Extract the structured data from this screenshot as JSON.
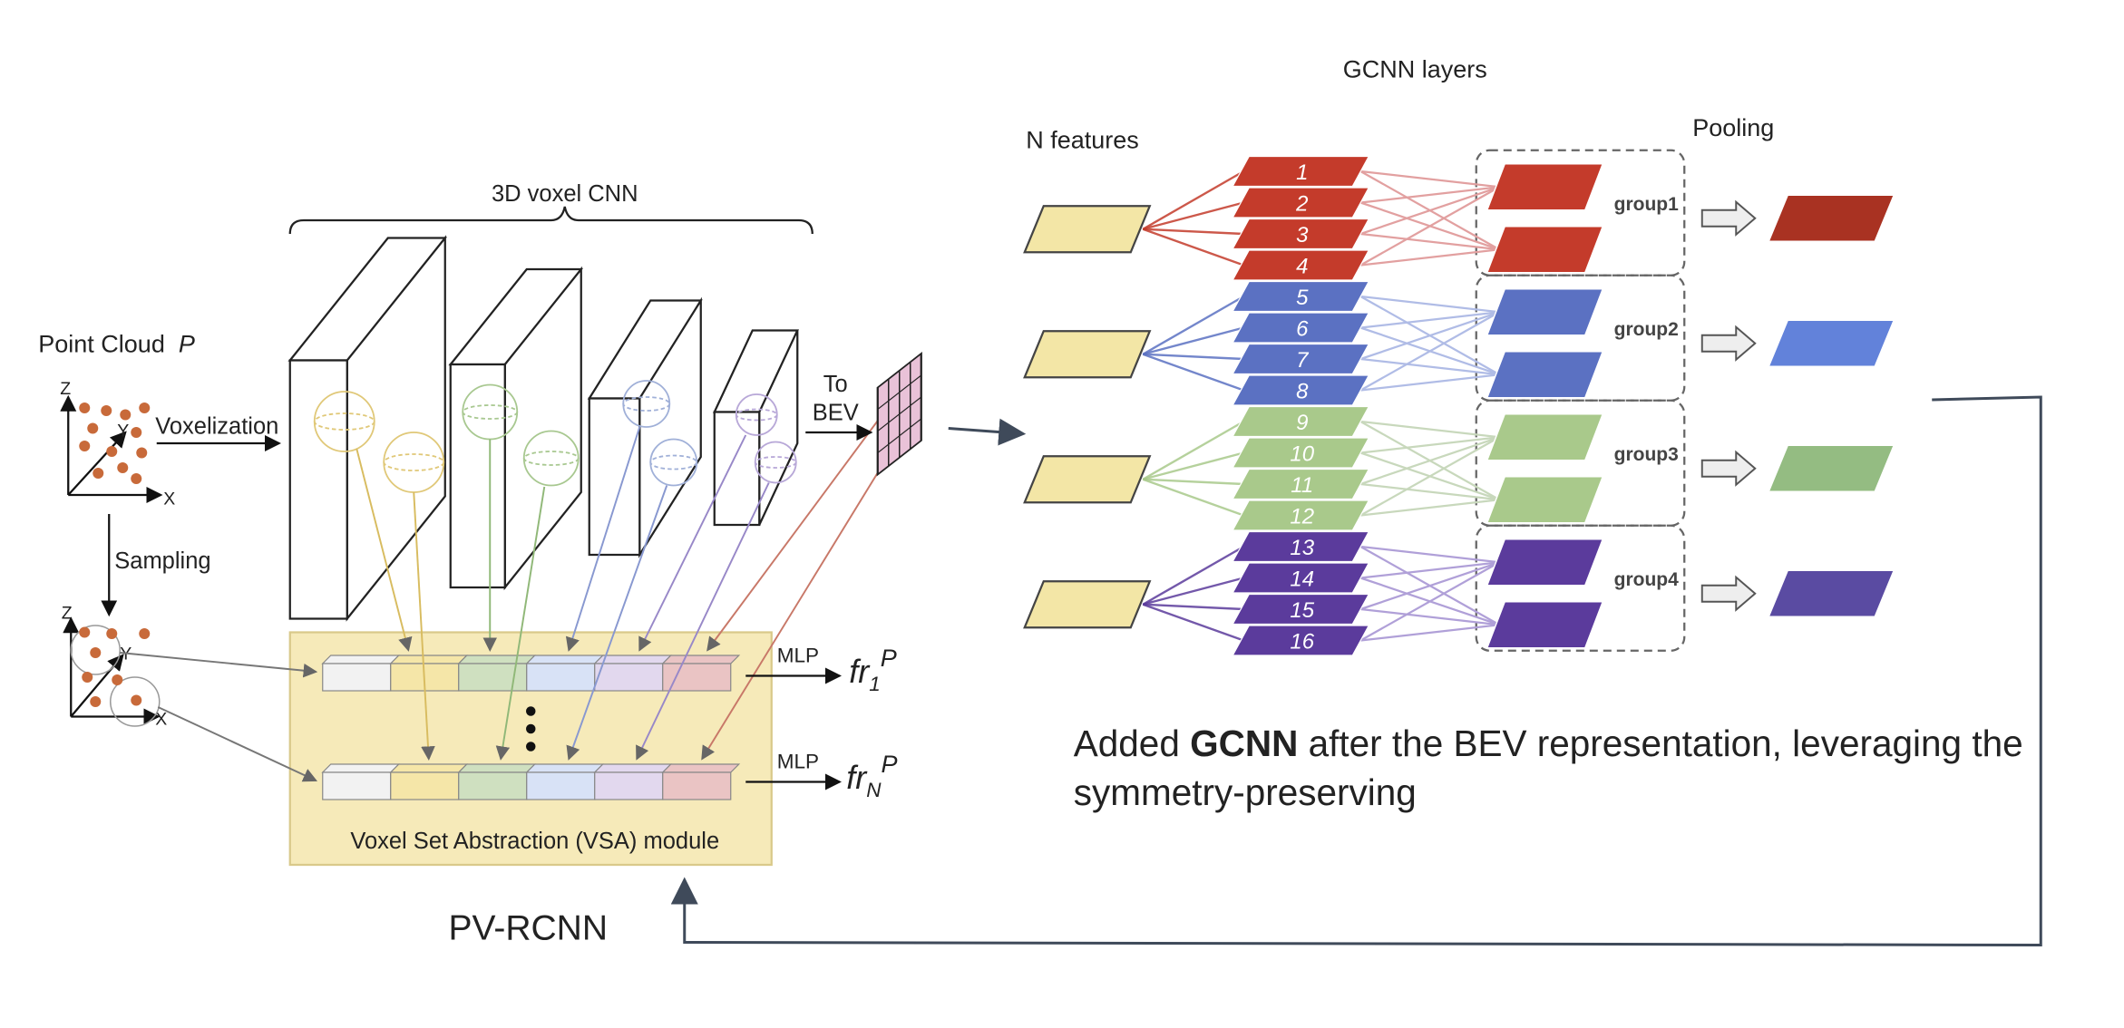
{
  "pv_rcnn": {
    "title": "PV-RCNN",
    "cnn_label": "3D voxel CNN",
    "point_cloud": {
      "label": "Point Cloud",
      "symbol": "P"
    },
    "axes_top": [
      "Z",
      "Y",
      "X"
    ],
    "axes_bottom": [
      "Z",
      "Y",
      "X"
    ],
    "voxelization": "Voxelization",
    "sampling": "Sampling",
    "to_bev": [
      "To",
      "BEV"
    ],
    "mlp": [
      "MLP",
      "MLP"
    ],
    "outputs": [
      {
        "base": "fr",
        "sub": "1",
        "sup": "P"
      },
      {
        "base": "fr",
        "sub": "N",
        "sup": "P"
      }
    ],
    "vsa": "Voxel Set Abstraction (VSA) module"
  },
  "gcnn": {
    "title": "GCNN layers",
    "input_label": "N features",
    "pooling_label": "Pooling",
    "layers": [
      "1",
      "2",
      "3",
      "4",
      "5",
      "6",
      "7",
      "8",
      "9",
      "10",
      "11",
      "12",
      "13",
      "14",
      "15",
      "16"
    ],
    "groups": [
      "group1",
      "group2",
      "group3",
      "group4"
    ]
  },
  "caption": {
    "before": "Added ",
    "bold": "GCNN",
    "after": " after the BEV representation, leveraging the",
    "line2": "symmetry-preserving"
  }
}
